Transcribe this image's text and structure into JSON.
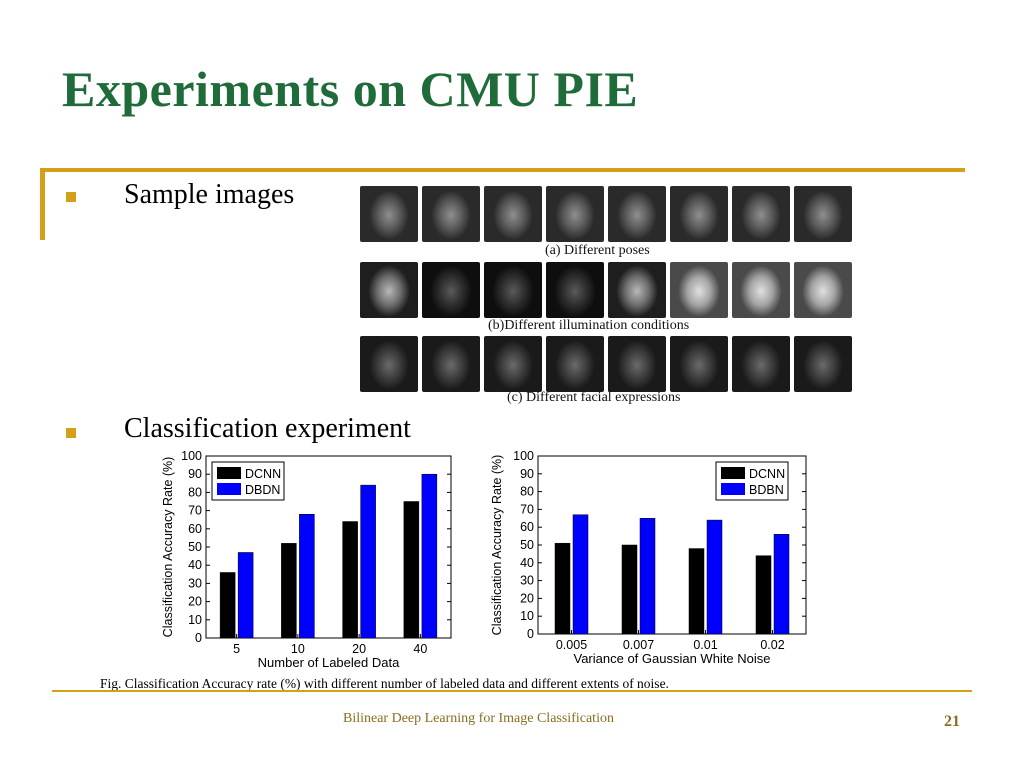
{
  "slide": {
    "title": "Experiments on CMU PIE",
    "bullets": [
      "Sample images",
      "Classification experiment"
    ],
    "face_captions": [
      "(a) Different poses",
      "(b)Different illumination conditions",
      "(c) Different facial expressions"
    ],
    "figure_caption": "Fig.  Classification Accuracy rate (%) with different number of labeled data and different extents of noise.",
    "footer": "Bilinear Deep Learning for Image Classification",
    "page_number": "21",
    "colors": {
      "title": "#1f6b3a",
      "accent": "#d4a017",
      "footer": "#8a6d1f"
    }
  },
  "chart_data": [
    {
      "type": "bar",
      "categories": [
        "5",
        "10",
        "20",
        "40"
      ],
      "series": [
        {
          "name": "DCNN",
          "values": [
            36,
            52,
            64,
            75
          ],
          "color": "#000000"
        },
        {
          "name": "DBDN",
          "values": [
            47,
            68,
            84,
            90
          ],
          "color": "#0000ff"
        }
      ],
      "xlabel": "Number of Labeled Data",
      "ylabel": "Classification Accuracy Rate (%)",
      "ylim": [
        0,
        100
      ],
      "yticks": [
        0,
        10,
        20,
        30,
        40,
        50,
        60,
        70,
        80,
        90,
        100
      ],
      "legend": "top-left",
      "grid": false
    },
    {
      "type": "bar",
      "categories": [
        "0.005",
        "0.007",
        "0.01",
        "0.02"
      ],
      "series": [
        {
          "name": "DCNN",
          "values": [
            51,
            50,
            48,
            44
          ],
          "color": "#000000"
        },
        {
          "name": "BDBN",
          "values": [
            67,
            65,
            64,
            56
          ],
          "color": "#0000ff"
        }
      ],
      "xlabel": "Variance of Gaussian White Noise",
      "ylabel": "Classification Accuracy Rate (%)",
      "ylim": [
        0,
        100
      ],
      "yticks": [
        0,
        10,
        20,
        30,
        40,
        50,
        60,
        70,
        80,
        90,
        100
      ],
      "legend": "top-right",
      "grid": false
    }
  ]
}
